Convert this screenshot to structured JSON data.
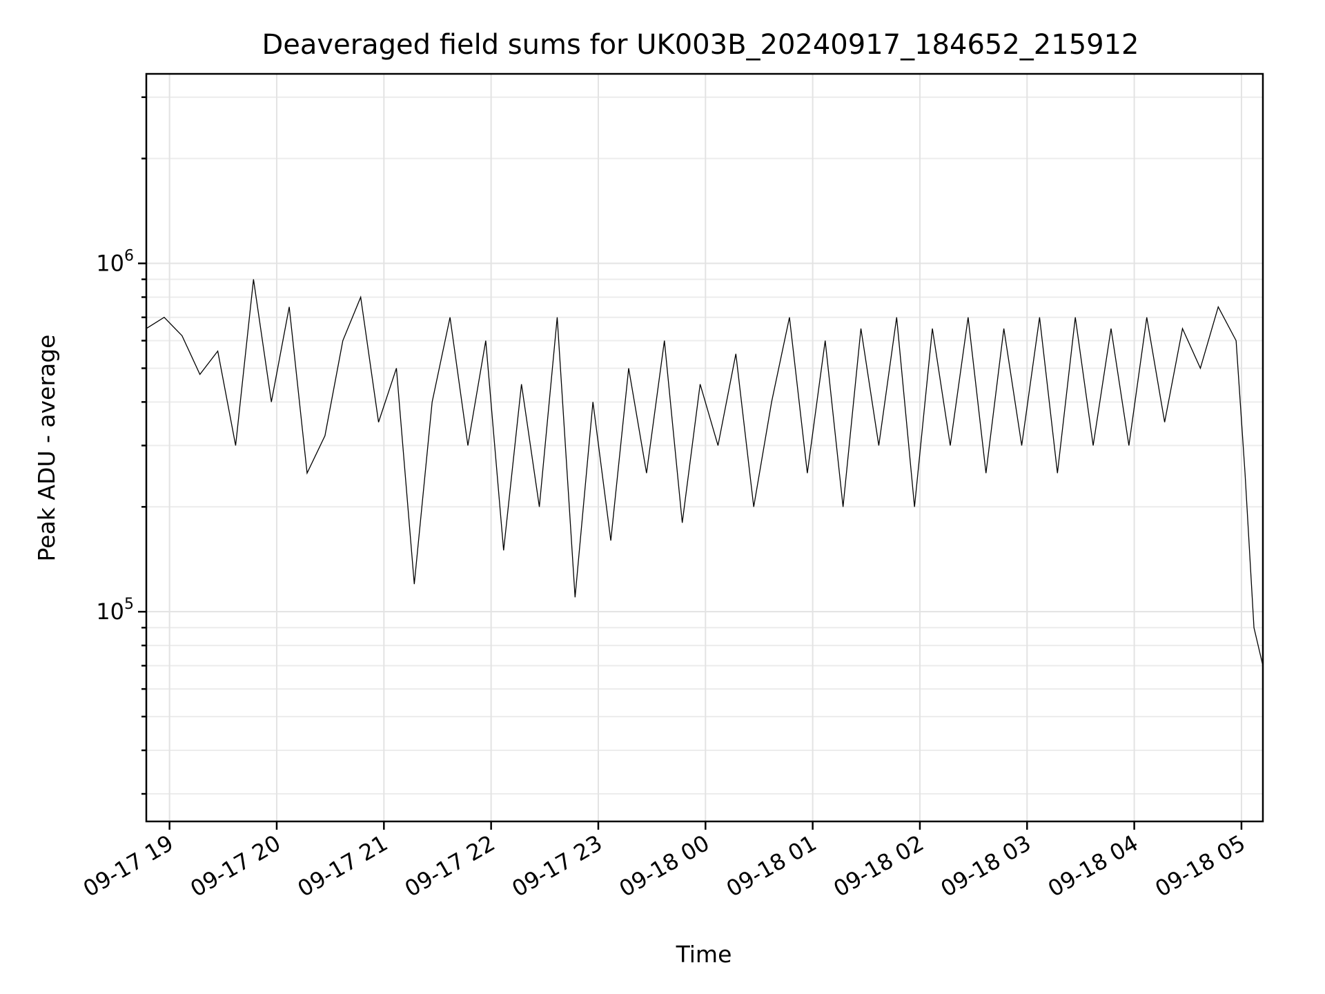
{
  "chart_data": {
    "type": "line",
    "title": "Deaveraged field sums for UK003B_20240917_184652_215912",
    "xlabel": "Time",
    "ylabel": "Peak ADU - average",
    "y_scale": "log",
    "ylim": [
      25000,
      3500000
    ],
    "xlim": [
      "2024-09-17 18:47:00",
      "2024-09-18 05:12:00"
    ],
    "grid": true,
    "x_ticks": [
      "09-17 19",
      "09-17 20",
      "09-17 21",
      "09-17 22",
      "09-17 23",
      "09-18 00",
      "09-18 01",
      "09-18 02",
      "09-18 03",
      "09-18 04",
      "09-18 05"
    ],
    "y_ticks": [
      {
        "value": 100000,
        "base": "10",
        "exp": "5"
      },
      {
        "value": 1000000,
        "base": "10",
        "exp": "6"
      }
    ],
    "series": [
      {
        "color": "#000000",
        "x": [
          "2024-09-17 18:47:00",
          "2024-09-17 18:57:00",
          "2024-09-17 19:07:00",
          "2024-09-17 19:17:00",
          "2024-09-17 19:27:00",
          "2024-09-17 19:37:00",
          "2024-09-17 19:47:00",
          "2024-09-17 19:57:00",
          "2024-09-17 20:07:00",
          "2024-09-17 20:17:00",
          "2024-09-17 20:27:00",
          "2024-09-17 20:37:00",
          "2024-09-17 20:47:00",
          "2024-09-17 20:57:00",
          "2024-09-17 21:07:00",
          "2024-09-17 21:17:00",
          "2024-09-17 21:27:00",
          "2024-09-17 21:37:00",
          "2024-09-17 21:47:00",
          "2024-09-17 21:57:00",
          "2024-09-17 22:07:00",
          "2024-09-17 22:17:00",
          "2024-09-17 22:27:00",
          "2024-09-17 22:37:00",
          "2024-09-17 22:47:00",
          "2024-09-17 22:57:00",
          "2024-09-17 23:07:00",
          "2024-09-17 23:17:00",
          "2024-09-17 23:27:00",
          "2024-09-17 23:37:00",
          "2024-09-17 23:47:00",
          "2024-09-17 23:57:00",
          "2024-09-18 00:07:00",
          "2024-09-18 00:17:00",
          "2024-09-18 00:27:00",
          "2024-09-18 00:37:00",
          "2024-09-18 00:47:00",
          "2024-09-18 00:57:00",
          "2024-09-18 01:07:00",
          "2024-09-18 01:17:00",
          "2024-09-18 01:27:00",
          "2024-09-18 01:37:00",
          "2024-09-18 01:47:00",
          "2024-09-18 01:57:00",
          "2024-09-18 02:07:00",
          "2024-09-18 02:17:00",
          "2024-09-18 02:27:00",
          "2024-09-18 02:37:00",
          "2024-09-18 02:47:00",
          "2024-09-18 02:57:00",
          "2024-09-18 03:07:00",
          "2024-09-18 03:17:00",
          "2024-09-18 03:27:00",
          "2024-09-18 03:37:00",
          "2024-09-18 03:47:00",
          "2024-09-18 03:57:00",
          "2024-09-18 04:07:00",
          "2024-09-18 04:17:00",
          "2024-09-18 04:27:00",
          "2024-09-18 04:37:00",
          "2024-09-18 04:47:00",
          "2024-09-18 04:57:00",
          "2024-09-18 05:02:00",
          "2024-09-18 05:07:00",
          "2024-09-18 05:12:00"
        ],
        "y": [
          650000,
          700000,
          620000,
          480000,
          560000,
          300000,
          900000,
          400000,
          750000,
          250000,
          320000,
          600000,
          800000,
          350000,
          500000,
          120000,
          400000,
          700000,
          300000,
          600000,
          150000,
          450000,
          200000,
          700000,
          110000,
          400000,
          160000,
          500000,
          250000,
          600000,
          180000,
          450000,
          300000,
          550000,
          200000,
          400000,
          700000,
          250000,
          600000,
          200000,
          650000,
          300000,
          700000,
          200000,
          650000,
          300000,
          700000,
          250000,
          650000,
          300000,
          700000,
          250000,
          700000,
          300000,
          650000,
          300000,
          700000,
          350000,
          650000,
          500000,
          750000,
          600000,
          250000,
          90000,
          70000
        ]
      }
    ]
  }
}
